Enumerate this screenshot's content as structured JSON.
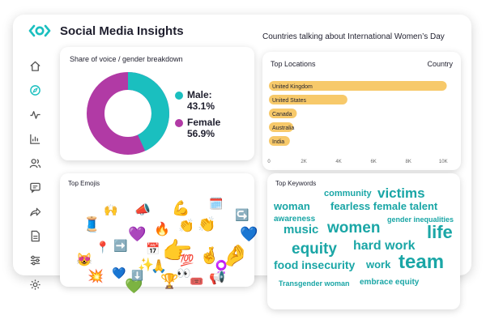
{
  "app": {
    "title": "Social Media Insights"
  },
  "colors": {
    "teal": "#1abfbf",
    "magenta": "#b13aa5",
    "bar": "#f7c96a",
    "keyword": "#1aa6a6"
  },
  "sidebar": {
    "items": [
      {
        "icon": "home-icon",
        "active": false
      },
      {
        "icon": "compass-icon",
        "active": true
      },
      {
        "icon": "activity-icon",
        "active": false
      },
      {
        "icon": "bar-chart-icon",
        "active": false
      },
      {
        "icon": "users-icon",
        "active": false
      },
      {
        "icon": "message-icon",
        "active": false
      },
      {
        "icon": "share-icon",
        "active": false
      },
      {
        "icon": "document-icon",
        "active": false
      },
      {
        "icon": "sliders-icon",
        "active": false
      },
      {
        "icon": "gear-icon",
        "active": false
      }
    ]
  },
  "share_of_voice": {
    "title": "Share of voice / gender breakdown",
    "male_label": "Male:",
    "male_value": "43.1%",
    "female_label": "Female",
    "female_value": "56.9%"
  },
  "countries": {
    "title": "Countries talking about International Women’s Day",
    "card_title": "Top Locations",
    "column": "Country"
  },
  "chart_data": {
    "type": "bar",
    "orientation": "horizontal",
    "categories": [
      "United Kingdom",
      "United States",
      "Canada",
      "Australia",
      "India"
    ],
    "values": [
      10200,
      4500,
      1600,
      1400,
      1200
    ],
    "xticks": [
      "0",
      "2K",
      "4K",
      "6K",
      "8K",
      "10K"
    ],
    "xlim": [
      0,
      10500
    ],
    "grid": false
  },
  "emojis": {
    "title": "Top Emojis",
    "items": [
      "🧵",
      "🙌",
      "📣",
      "💪",
      "🗓️",
      "🔥",
      "💜",
      "👏",
      "👏",
      "💙",
      "📍",
      "➡️",
      "📅",
      "👉",
      "🤞",
      "😻",
      "💯",
      "✨",
      "🙏",
      "👀",
      "♀️",
      "💥",
      "💙",
      "💚",
      "🏆",
      "🎟️",
      "📢",
      "🤌",
      "⬇️",
      "↪️"
    ]
  },
  "keywords": {
    "title": "Top Keywords",
    "items": [
      "community",
      "victims",
      "woman",
      "fearless female talent",
      "awareness",
      "gender inequalities",
      "music",
      "women",
      "life",
      "equity",
      "hard work",
      "food insecurity",
      "work",
      "team",
      "Transgender woman",
      "embrace equity"
    ]
  }
}
